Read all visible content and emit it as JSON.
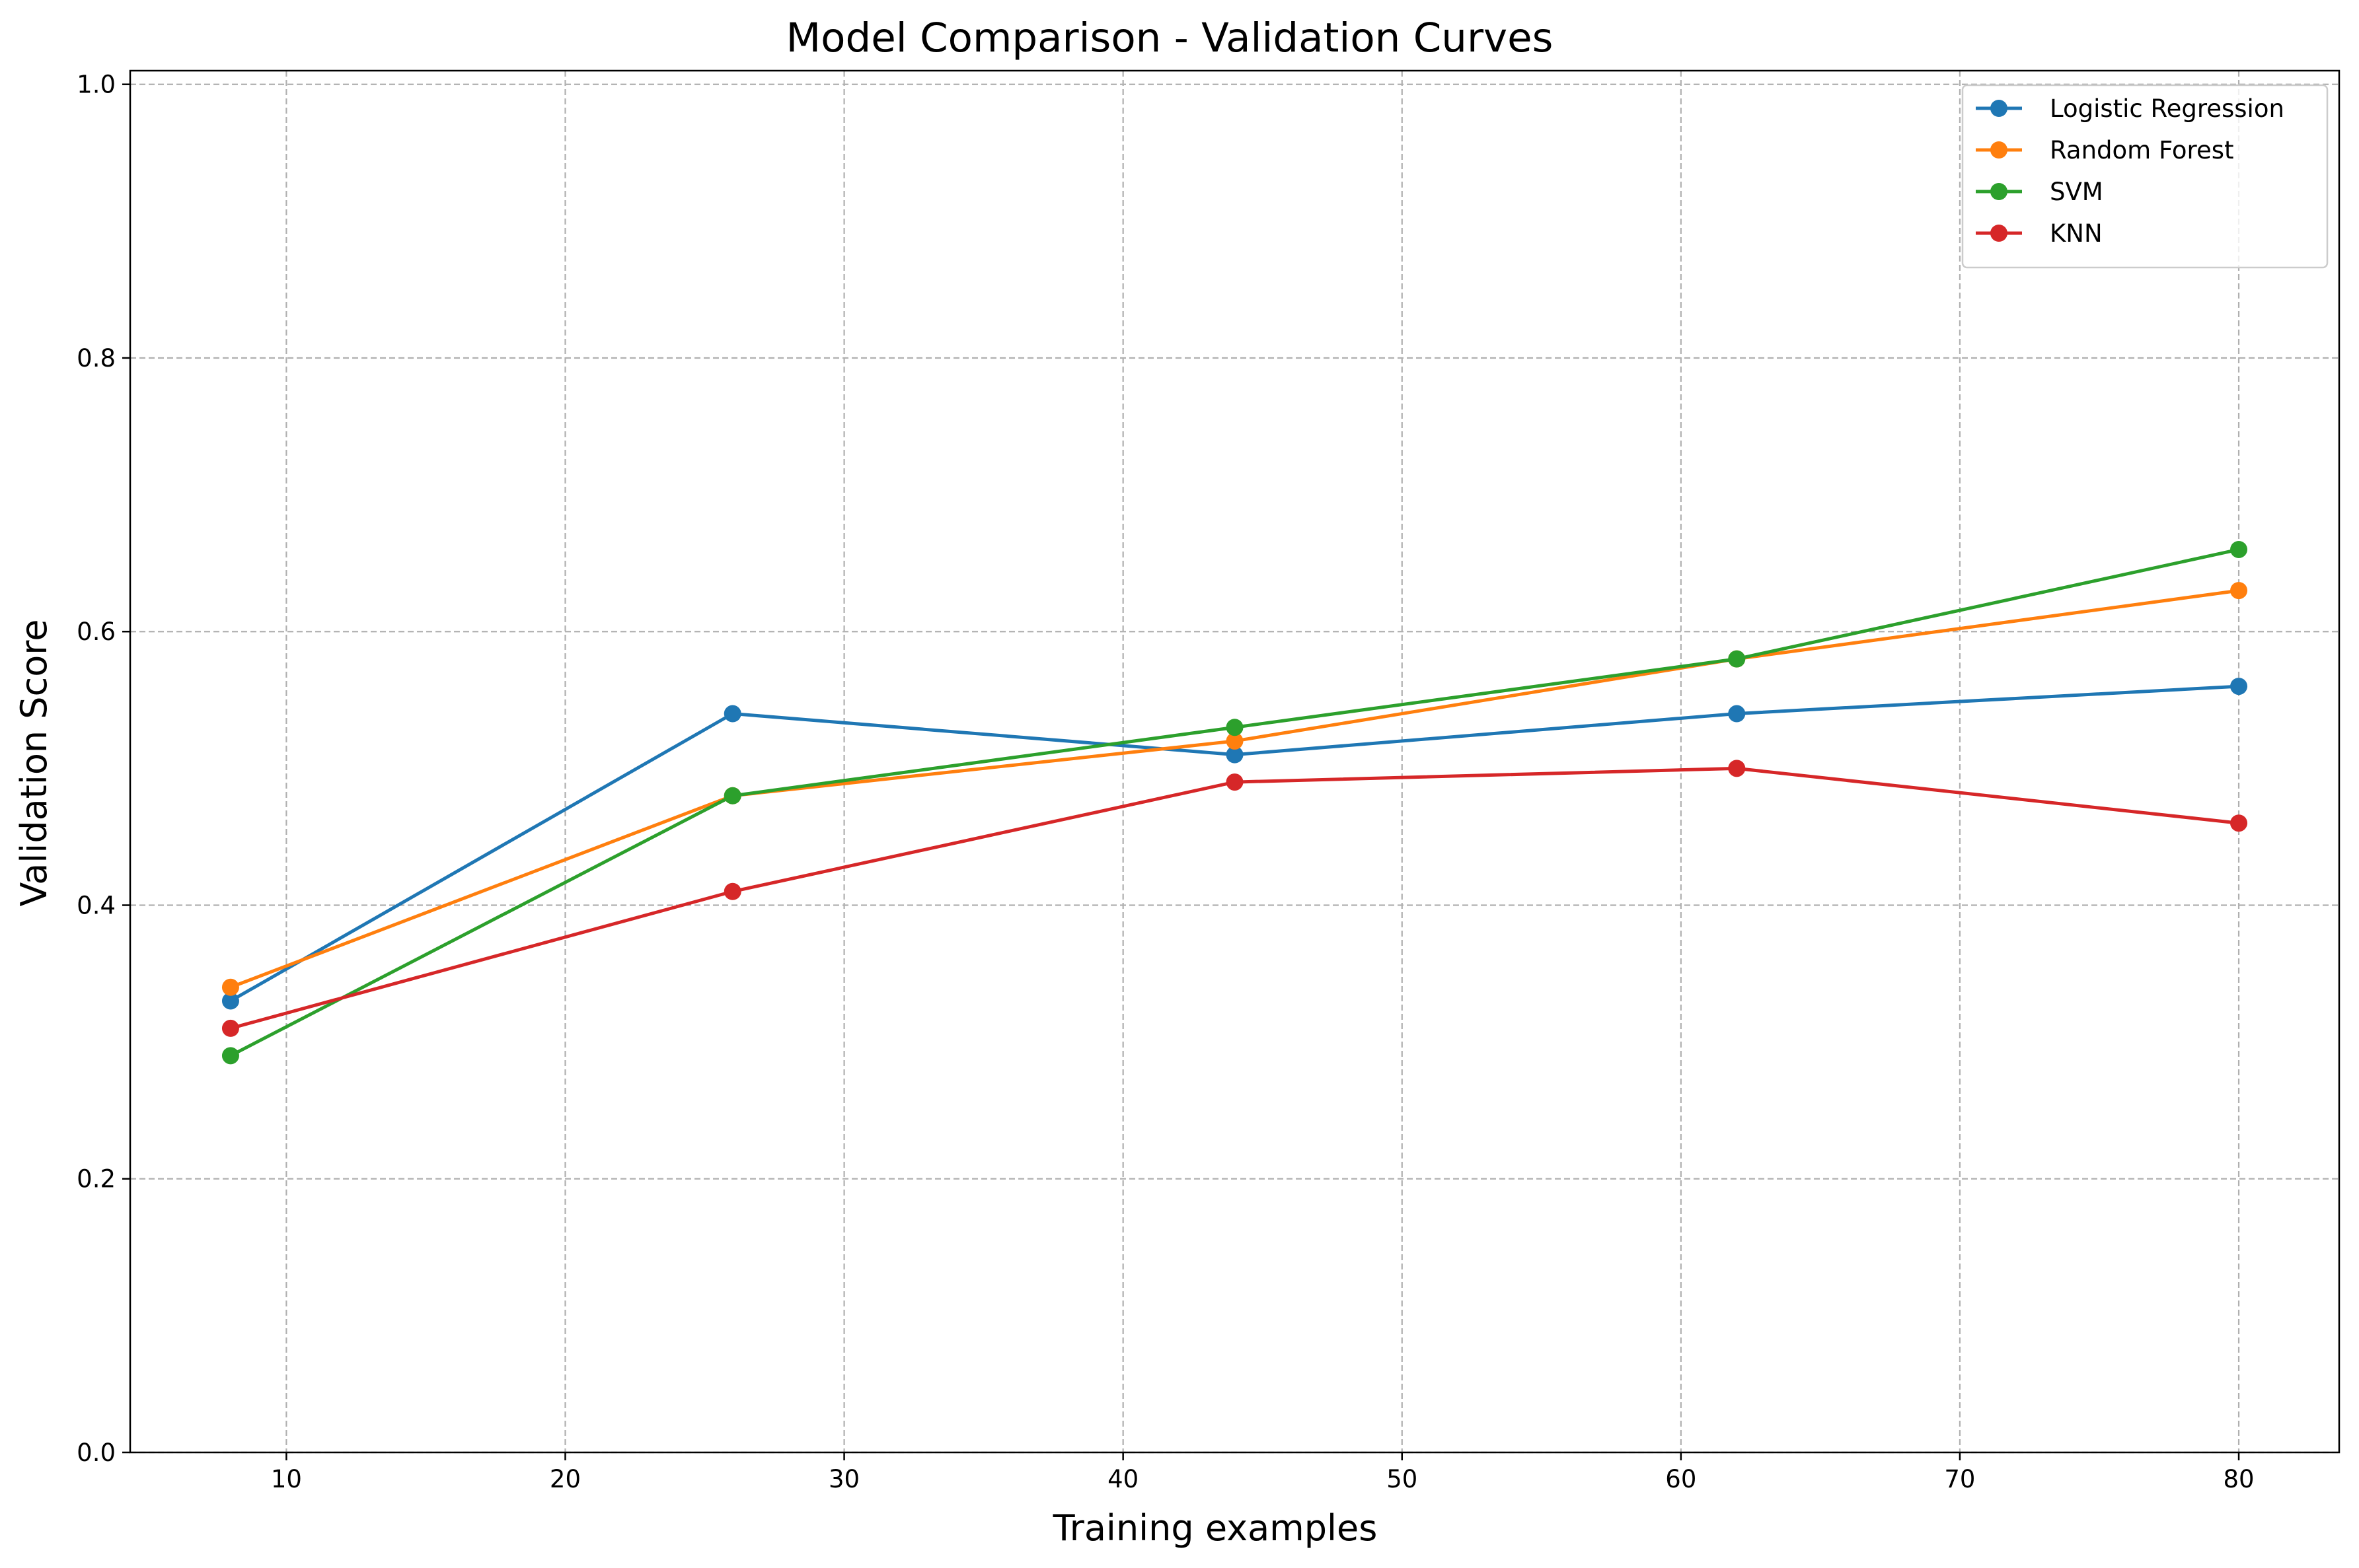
{
  "chart_data": {
    "type": "line",
    "title": "Model Comparison - Validation Curves",
    "xlabel": "Training examples",
    "ylabel": "Validation Score",
    "x": [
      8,
      26,
      44,
      62,
      80
    ],
    "xlim": [
      4.4,
      83.6
    ],
    "ylim": [
      0.0,
      1.01
    ],
    "xticks": [
      10,
      20,
      30,
      40,
      50,
      60,
      70,
      80
    ],
    "yticks": [
      0.0,
      0.2,
      0.4,
      0.6,
      0.8,
      1.0
    ],
    "xtick_labels": [
      "10",
      "20",
      "30",
      "40",
      "50",
      "60",
      "70",
      "80"
    ],
    "ytick_labels": [
      "0.0",
      "0.2",
      "0.4",
      "0.6",
      "0.8",
      "1.0"
    ],
    "grid": true,
    "legend_position": "top-right",
    "series": [
      {
        "name": "Logistic Regression",
        "color": "#1f77b4",
        "values": [
          0.33,
          0.54,
          0.51,
          0.54,
          0.56
        ]
      },
      {
        "name": "Random Forest",
        "color": "#ff7f0e",
        "values": [
          0.34,
          0.48,
          0.52,
          0.58,
          0.63
        ]
      },
      {
        "name": "SVM",
        "color": "#2ca02c",
        "values": [
          0.29,
          0.48,
          0.53,
          0.58,
          0.66
        ]
      },
      {
        "name": "KNN",
        "color": "#d62728",
        "values": [
          0.31,
          0.41,
          0.49,
          0.5,
          0.46
        ]
      }
    ]
  }
}
